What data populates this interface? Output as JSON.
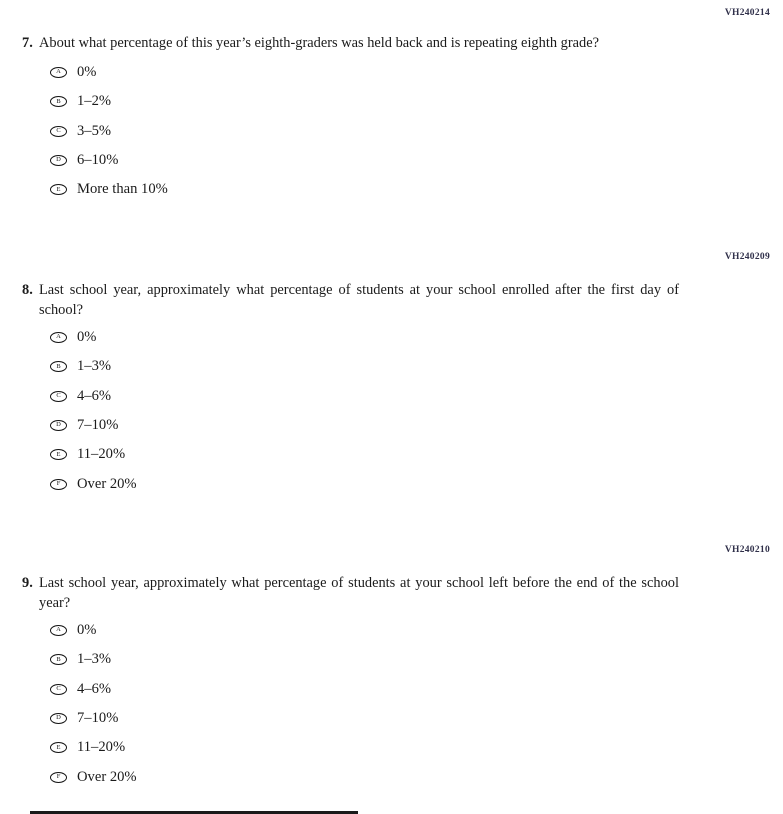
{
  "page": {
    "background": "#ffffff"
  },
  "colors": {
    "code_text": "#30304a",
    "body_text": "#1b1b1b",
    "bubble_border": "#151515",
    "bottom_edge_line": "#1a1a1a"
  },
  "questions": [
    {
      "code": "VH240214",
      "number": "7.",
      "text": "About what percentage of this year’s eighth-graders was held back and is repeating eighth grade?",
      "options": [
        {
          "letter": "A",
          "label": "0%"
        },
        {
          "letter": "B",
          "label": "1–2%"
        },
        {
          "letter": "C",
          "label": "3–5%"
        },
        {
          "letter": "D",
          "label": "6–10%"
        },
        {
          "letter": "E",
          "label": "More than 10%"
        }
      ]
    },
    {
      "code": "VH240209",
      "number": "8.",
      "text": "Last school year, approximately what percentage of students at your school enrolled after the first day of school?",
      "options": [
        {
          "letter": "A",
          "label": "0%"
        },
        {
          "letter": "B",
          "label": "1–3%"
        },
        {
          "letter": "C",
          "label": "4–6%"
        },
        {
          "letter": "D",
          "label": "7–10%"
        },
        {
          "letter": "E",
          "label": "11–20%"
        },
        {
          "letter": "F",
          "label": "Over 20%"
        }
      ]
    },
    {
      "code": "VH240210",
      "number": "9.",
      "text": "Last school year, approximately what percentage of students at your school left before the end of the school year?",
      "options": [
        {
          "letter": "A",
          "label": "0%"
        },
        {
          "letter": "B",
          "label": "1–3%"
        },
        {
          "letter": "C",
          "label": "4–6%"
        },
        {
          "letter": "D",
          "label": "7–10%"
        },
        {
          "letter": "E",
          "label": "11–20%"
        },
        {
          "letter": "F",
          "label": "Over 20%"
        }
      ]
    }
  ]
}
